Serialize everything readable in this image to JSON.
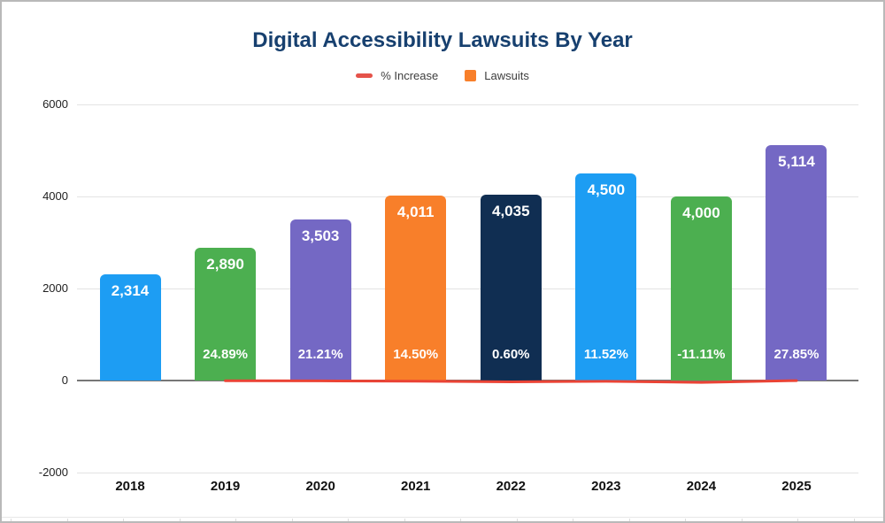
{
  "title": "Digital Accessibility Lawsuits By Year",
  "legend": [
    {
      "label": "% Increase",
      "swatch": "line",
      "color": "#e5534a"
    },
    {
      "label": "Lawsuits",
      "swatch": "square",
      "color": "#f87f2a"
    }
  ],
  "colors": {
    "title": "#17406f",
    "pct_line": "#ea4335",
    "zero_axis": "#777777",
    "gridline": "#e3e3e3"
  },
  "chart_data": {
    "type": "bar",
    "title": "Digital Accessibility Lawsuits By Year",
    "categories": [
      "2018",
      "2019",
      "2020",
      "2021",
      "2022",
      "2023",
      "2024",
      "2025"
    ],
    "series": [
      {
        "name": "Lawsuits",
        "type": "bar",
        "values": [
          2314,
          2890,
          3503,
          4011,
          4035,
          4500,
          4000,
          5114
        ],
        "labels": [
          "2,314",
          "2,890",
          "3,503",
          "4,011",
          "4,035",
          "4,500",
          "4,000",
          "5,114"
        ],
        "colors": [
          "#1d9df3",
          "#4caf50",
          "#7468c4",
          "#f87f2a",
          "#102e52",
          "#1d9df3",
          "#4caf50",
          "#7468c4"
        ]
      },
      {
        "name": "% Increase",
        "type": "line",
        "values": [
          null,
          24.89,
          21.21,
          14.5,
          0.6,
          11.52,
          -11.11,
          27.85
        ],
        "labels": [
          "",
          "24.89%",
          "21.21%",
          "14.50%",
          "0.60%",
          "11.52%",
          "-11.11%",
          "27.85%"
        ],
        "color": "#ea4335"
      }
    ],
    "xlabel": "",
    "ylabel": "",
    "ylim": [
      -2000,
      6000
    ],
    "yticks": [
      6000,
      4000,
      2000,
      0,
      -2000
    ],
    "ytick_labels": [
      "6000",
      "4000",
      "2000",
      "0",
      "-2000"
    ],
    "grid": true,
    "legend_position": "top"
  }
}
